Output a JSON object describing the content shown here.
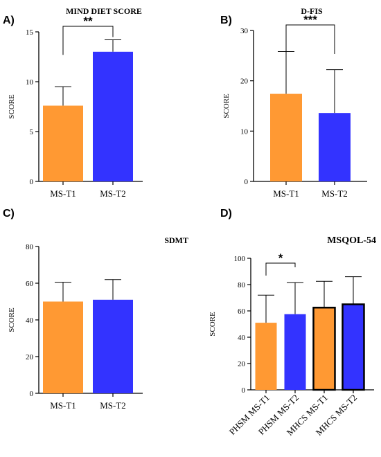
{
  "colors": {
    "orange": "#FF9933",
    "blue": "#3333FF"
  },
  "chart_data": [
    {
      "panel": "A)",
      "type": "bar",
      "title": "MIND DIET SCORE",
      "ylabel": "SCORE",
      "ylim": [
        0,
        15
      ],
      "yticks": [
        "0",
        "5",
        "10",
        "15"
      ],
      "categories": [
        "MS-T1",
        "MS-T2"
      ],
      "values": [
        7.6,
        13.0
      ],
      "errors": [
        1.9,
        1.2
      ],
      "bar_colors": [
        "#FF9933",
        "#3333FF"
      ],
      "significance": [
        {
          "from": 0,
          "to": 1,
          "label": "**"
        }
      ]
    },
    {
      "panel": "B)",
      "type": "bar",
      "title": "D-FIS",
      "ylabel": "SCORE",
      "ylim": [
        0,
        30
      ],
      "yticks": [
        "0",
        "10",
        "20",
        "30"
      ],
      "categories": [
        "MS-T1",
        "MS-T2"
      ],
      "values": [
        17.4,
        13.6
      ],
      "errors": [
        8.4,
        8.6
      ],
      "bar_colors": [
        "#FF9933",
        "#3333FF"
      ],
      "significance": [
        {
          "from": 0,
          "to": 1,
          "label": "***"
        }
      ]
    },
    {
      "panel": "C)",
      "type": "bar",
      "title": "SDMT",
      "ylabel": "SCORE",
      "ylim": [
        0,
        80
      ],
      "yticks": [
        "0",
        "20",
        "40",
        "60",
        "80"
      ],
      "categories": [
        "MS-T1",
        "MS-T2"
      ],
      "values": [
        50.0,
        51.0
      ],
      "errors": [
        10.5,
        11.0
      ],
      "bar_colors": [
        "#FF9933",
        "#3333FF"
      ],
      "significance": []
    },
    {
      "panel": "D)",
      "type": "bar",
      "title": "MSQOL-54",
      "ylabel": "SCORE",
      "ylim": [
        0,
        100
      ],
      "yticks": [
        "0",
        "20",
        "40",
        "60",
        "80",
        "100"
      ],
      "categories": [
        "PHSM MS-T1",
        "PHSM MS-T2",
        "MHCS MS-T1",
        "MHCS MS-T2"
      ],
      "values": [
        51.0,
        57.5,
        62.5,
        65.0
      ],
      "errors": [
        21.0,
        24.0,
        20.0,
        21.0
      ],
      "bar_colors": [
        "#FF9933",
        "#3333FF",
        "#FF9933",
        "#3333FF"
      ],
      "bold_outline": [
        false,
        false,
        true,
        true
      ],
      "significance": [
        {
          "from": 0,
          "to": 1,
          "label": "*"
        }
      ]
    }
  ]
}
